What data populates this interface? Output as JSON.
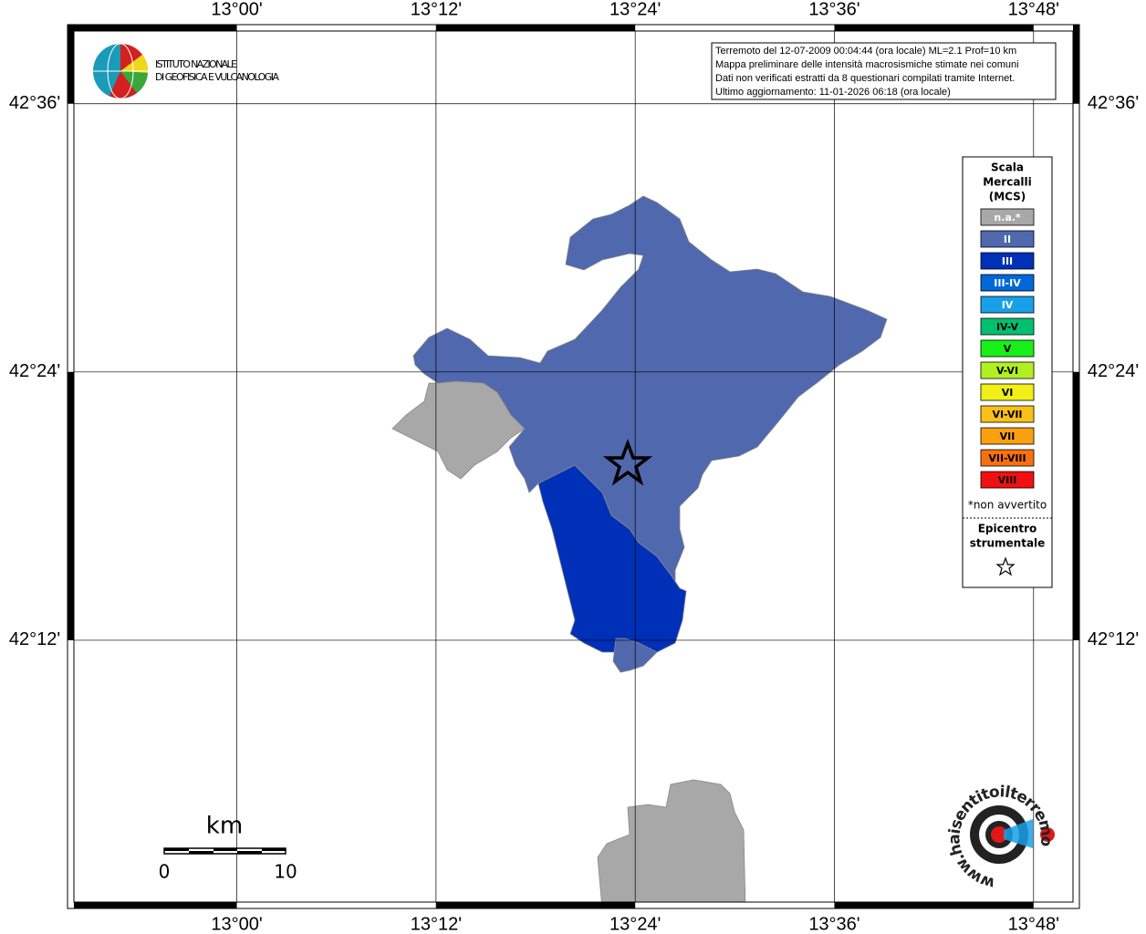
{
  "info_box": {
    "lines": [
      "Terremoto del 12-07-2009 00:04:44 (ora locale) ML=2.1 Prof=10 km",
      "Mappa preliminare delle intensità macrosismiche stimate nei comuni",
      "Dati non verificati estratti da 8 questionari compilati tramite Internet.",
      "Ultimo aggiornamento: 11-01-2026 06:18 (ora locale)"
    ]
  },
  "logo": {
    "lines": [
      "ISTITUTO NAZIONALE",
      "DI GEOFISICA E VULCANOLOGIA"
    ]
  },
  "map": {
    "xlim": [
      12.83,
      13.846
    ],
    "ylim": [
      42.0,
      42.659
    ],
    "xticks": [
      {
        "value": 13.0,
        "label": "13°00'"
      },
      {
        "value": 13.2,
        "label": "13°12'"
      },
      {
        "value": 13.4,
        "label": "13°24'"
      },
      {
        "value": 13.6,
        "label": "13°36'"
      },
      {
        "value": 13.8,
        "label": "13°48'"
      }
    ],
    "yticks": [
      {
        "value": 42.6,
        "label": "42°36'"
      },
      {
        "value": 42.4,
        "label": "42°24'"
      },
      {
        "value": 42.2,
        "label": "42°12'"
      }
    ],
    "grid": true
  },
  "legend": {
    "title": [
      "Scala",
      "Mercalli",
      "(MCS)"
    ],
    "items": [
      {
        "label": "n.a.*",
        "color": "#a8a8a8",
        "text_color": "#ffffff"
      },
      {
        "label": "II",
        "color": "#4f68ae",
        "text_color": "#ffffff"
      },
      {
        "label": "III",
        "color": "#0030b8",
        "text_color": "#ffffff"
      },
      {
        "label": "III-IV",
        "color": "#0068d8",
        "text_color": "#ffffff"
      },
      {
        "label": "IV",
        "color": "#18a0e8",
        "text_color": "#ffffff"
      },
      {
        "label": "IV-V",
        "color": "#00c070",
        "text_color": "#000000"
      },
      {
        "label": "V",
        "color": "#18f018",
        "text_color": "#000000"
      },
      {
        "label": "V-VI",
        "color": "#b0f020",
        "text_color": "#000000"
      },
      {
        "label": "VI",
        "color": "#f0f018",
        "text_color": "#000000"
      },
      {
        "label": "VI-VII",
        "color": "#f8c018",
        "text_color": "#000000"
      },
      {
        "label": "VII",
        "color": "#f8a010",
        "text_color": "#000000"
      },
      {
        "label": "VII-VIII",
        "color": "#f87010",
        "text_color": "#000000"
      },
      {
        "label": "VIII",
        "color": "#f01010",
        "text_color": "#000000"
      }
    ],
    "note": "*non avvertito",
    "epicenter": [
      "Epicentro",
      "strumentale"
    ]
  },
  "scale_bar": {
    "unit": "km",
    "labels": [
      "0",
      "10"
    ]
  },
  "site_logo": {
    "text": "www.haisentitoilterremoto.it"
  }
}
